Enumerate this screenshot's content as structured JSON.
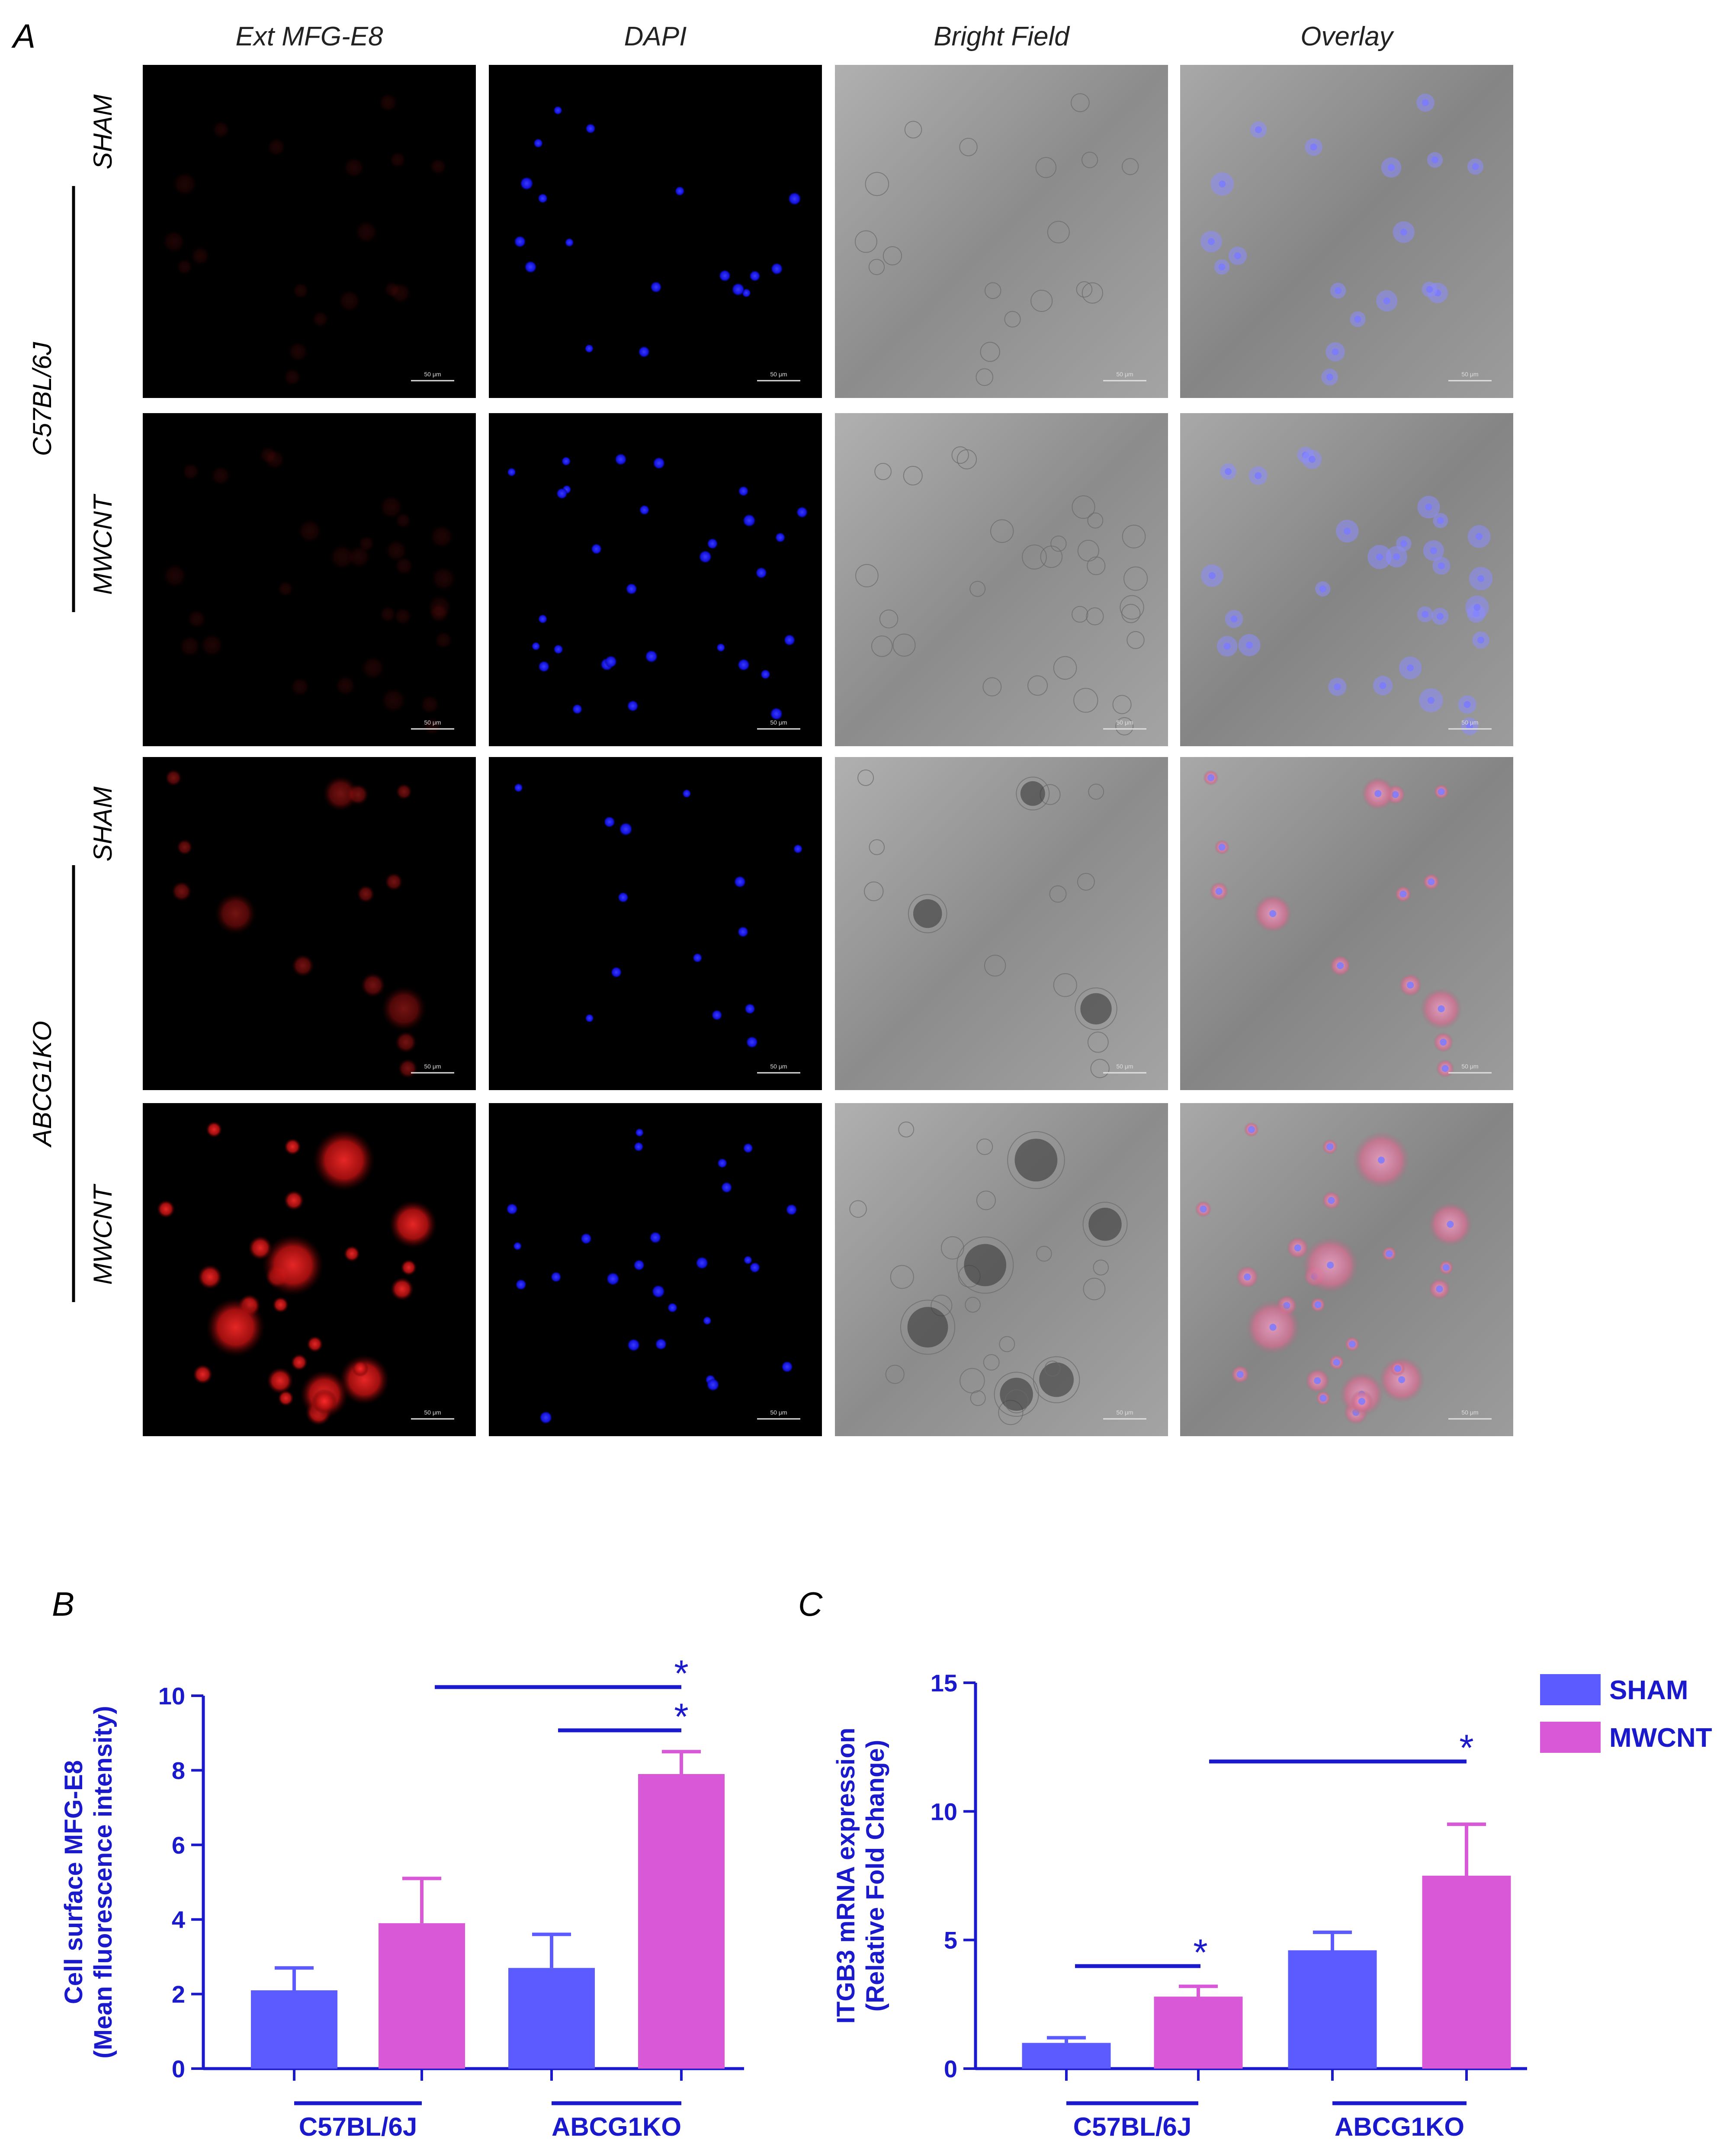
{
  "panel_a": {
    "letter": "A",
    "columns": [
      "Ext MFG-E8",
      "DAPI",
      "Bright Field",
      "Overlay"
    ],
    "strains": [
      {
        "name": "C57BL/6J",
        "conditions": [
          "SHAM",
          "MWCNT"
        ]
      },
      {
        "name": "ABCG1KO",
        "conditions": [
          "SHAM",
          "MWCNT"
        ]
      }
    ],
    "scale_bar": "50 μm"
  },
  "panel_b": {
    "letter": "B"
  },
  "panel_c": {
    "letter": "C"
  },
  "legend": {
    "sham": "SHAM",
    "mwcnt": "MWCNT",
    "sham_color": "#5b5bff",
    "mwcnt_color": "#d858d8"
  },
  "chart_data": [
    {
      "type": "bar",
      "panel": "B",
      "ylabel_line1": "Cell surface MFG-E8",
      "ylabel_line2": "(Mean fluorescence intensity)",
      "ylim": [
        0,
        10
      ],
      "yticks": [
        0,
        2,
        4,
        6,
        8,
        10
      ],
      "groups": [
        "C57BL/6J",
        "ABCG1KO"
      ],
      "series": [
        {
          "name": "SHAM",
          "values": [
            2.1,
            2.7
          ],
          "errors": [
            0.6,
            0.9
          ]
        },
        {
          "name": "MWCNT",
          "values": [
            3.9,
            7.9
          ],
          "errors": [
            1.2,
            0.6
          ]
        }
      ],
      "significance": [
        "*",
        "*"
      ]
    },
    {
      "type": "bar",
      "panel": "C",
      "ylabel_line1": "ITGB3 mRNA expression",
      "ylabel_line2": "(Relative Fold Change)",
      "ylim": [
        0,
        15
      ],
      "yticks": [
        0,
        5,
        10,
        15
      ],
      "groups": [
        "C57BL/6J",
        "ABCG1KO"
      ],
      "series": [
        {
          "name": "SHAM",
          "values": [
            1.0,
            4.6
          ],
          "errors": [
            0.2,
            0.7
          ]
        },
        {
          "name": "MWCNT",
          "values": [
            2.8,
            7.5
          ],
          "errors": [
            0.4,
            2.0
          ]
        }
      ],
      "significance": [
        "*",
        "*"
      ]
    }
  ]
}
